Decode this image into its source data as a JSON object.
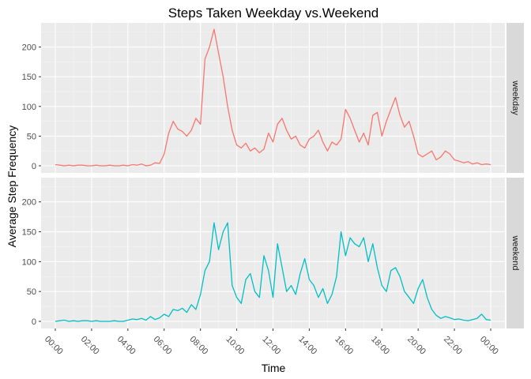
{
  "chart_data": {
    "type": "line",
    "title": "Steps Taken Weekday vs.Weekend",
    "xlabel": "Time",
    "ylabel": "Average Step Frequency",
    "x_unit": "hour of day",
    "xlim": [
      0,
      24
    ],
    "ylim": [
      0,
      230
    ],
    "x_ticks": [
      0,
      2,
      4,
      6,
      8,
      10,
      12,
      14,
      16,
      18,
      20,
      22,
      24
    ],
    "x_tick_labels": [
      "00:00",
      "02:00",
      "04:00",
      "06:00",
      "08:00",
      "10:00",
      "12:00",
      "14:00",
      "16:00",
      "18:00",
      "20:00",
      "22:00",
      "00:00"
    ],
    "y_ticks": [
      0,
      50,
      100,
      150,
      200
    ],
    "y_tick_labels": [
      "0",
      "50",
      "100",
      "150",
      "200"
    ],
    "grid": true,
    "legend": "none",
    "facets": [
      {
        "label": "weekday",
        "color": "#F8766D",
        "x": [
          0,
          0.25,
          0.5,
          0.75,
          1,
          1.25,
          1.5,
          1.75,
          2,
          2.25,
          2.5,
          2.75,
          3,
          3.25,
          3.5,
          3.75,
          4,
          4.25,
          4.5,
          4.75,
          5,
          5.25,
          5.5,
          5.75,
          6,
          6.25,
          6.5,
          6.75,
          7,
          7.25,
          7.5,
          7.75,
          8,
          8.25,
          8.5,
          8.75,
          9,
          9.25,
          9.5,
          9.75,
          10,
          10.25,
          10.5,
          10.75,
          11,
          11.25,
          11.5,
          11.75,
          12,
          12.25,
          12.5,
          12.75,
          13,
          13.25,
          13.5,
          13.75,
          14,
          14.25,
          14.5,
          14.75,
          15,
          15.25,
          15.5,
          15.75,
          16,
          16.25,
          16.5,
          16.75,
          17,
          17.25,
          17.5,
          17.75,
          18,
          18.25,
          18.5,
          18.75,
          19,
          19.25,
          19.5,
          19.75,
          20,
          20.25,
          20.5,
          20.75,
          21,
          21.25,
          21.5,
          21.75,
          22,
          22.25,
          22.5,
          22.75,
          23,
          23.25,
          23.5,
          23.75,
          24
        ],
        "y": [
          2,
          1,
          0,
          1,
          0,
          1,
          1,
          0,
          0,
          1,
          0,
          0,
          1,
          0,
          0,
          1,
          0,
          2,
          1,
          3,
          0,
          1,
          5,
          4,
          20,
          55,
          75,
          62,
          58,
          50,
          60,
          80,
          70,
          180,
          200,
          230,
          190,
          150,
          100,
          60,
          35,
          30,
          38,
          25,
          30,
          22,
          28,
          55,
          40,
          70,
          80,
          60,
          45,
          50,
          35,
          30,
          45,
          50,
          60,
          40,
          25,
          40,
          35,
          45,
          95,
          80,
          60,
          40,
          55,
          35,
          85,
          90,
          50,
          75,
          95,
          115,
          85,
          65,
          75,
          50,
          20,
          15,
          20,
          25,
          10,
          15,
          25,
          20,
          10,
          8,
          5,
          7,
          3,
          5,
          2,
          3,
          2
        ],
        "labels": [
          "weekday"
        ]
      },
      {
        "label": "weekend",
        "color": "#00BFC4",
        "x": [
          0,
          0.25,
          0.5,
          0.75,
          1,
          1.25,
          1.5,
          1.75,
          2,
          2.25,
          2.5,
          2.75,
          3,
          3.25,
          3.5,
          3.75,
          4,
          4.25,
          4.5,
          4.75,
          5,
          5.25,
          5.5,
          5.75,
          6,
          6.25,
          6.5,
          6.75,
          7,
          7.25,
          7.5,
          7.75,
          8,
          8.25,
          8.5,
          8.75,
          9,
          9.25,
          9.5,
          9.75,
          10,
          10.25,
          10.5,
          10.75,
          11,
          11.25,
          11.5,
          11.75,
          12,
          12.25,
          12.5,
          12.75,
          13,
          13.25,
          13.5,
          13.75,
          14,
          14.25,
          14.5,
          14.75,
          15,
          15.25,
          15.5,
          15.75,
          16,
          16.25,
          16.5,
          16.75,
          17,
          17.25,
          17.5,
          17.75,
          18,
          18.25,
          18.5,
          18.75,
          19,
          19.25,
          19.5,
          19.75,
          20,
          20.25,
          20.5,
          20.75,
          21,
          21.25,
          21.5,
          21.75,
          22,
          22.25,
          22.5,
          22.75,
          23,
          23.25,
          23.5,
          23.75,
          24
        ],
        "y": [
          0,
          1,
          2,
          0,
          1,
          0,
          1,
          1,
          0,
          1,
          0,
          0,
          0,
          1,
          0,
          0,
          2,
          4,
          3,
          5,
          2,
          8,
          3,
          6,
          12,
          8,
          20,
          18,
          22,
          15,
          28,
          20,
          45,
          85,
          100,
          165,
          120,
          150,
          165,
          60,
          40,
          30,
          70,
          80,
          50,
          40,
          110,
          85,
          40,
          130,
          90,
          50,
          60,
          45,
          80,
          105,
          70,
          60,
          40,
          55,
          30,
          45,
          75,
          150,
          110,
          140,
          130,
          125,
          140,
          100,
          130,
          90,
          60,
          50,
          85,
          90,
          75,
          50,
          40,
          30,
          55,
          70,
          40,
          20,
          10,
          5,
          8,
          6,
          3,
          4,
          2,
          1,
          3,
          5,
          12,
          3,
          2
        ],
        "labels": [
          "weekend"
        ]
      }
    ]
  }
}
